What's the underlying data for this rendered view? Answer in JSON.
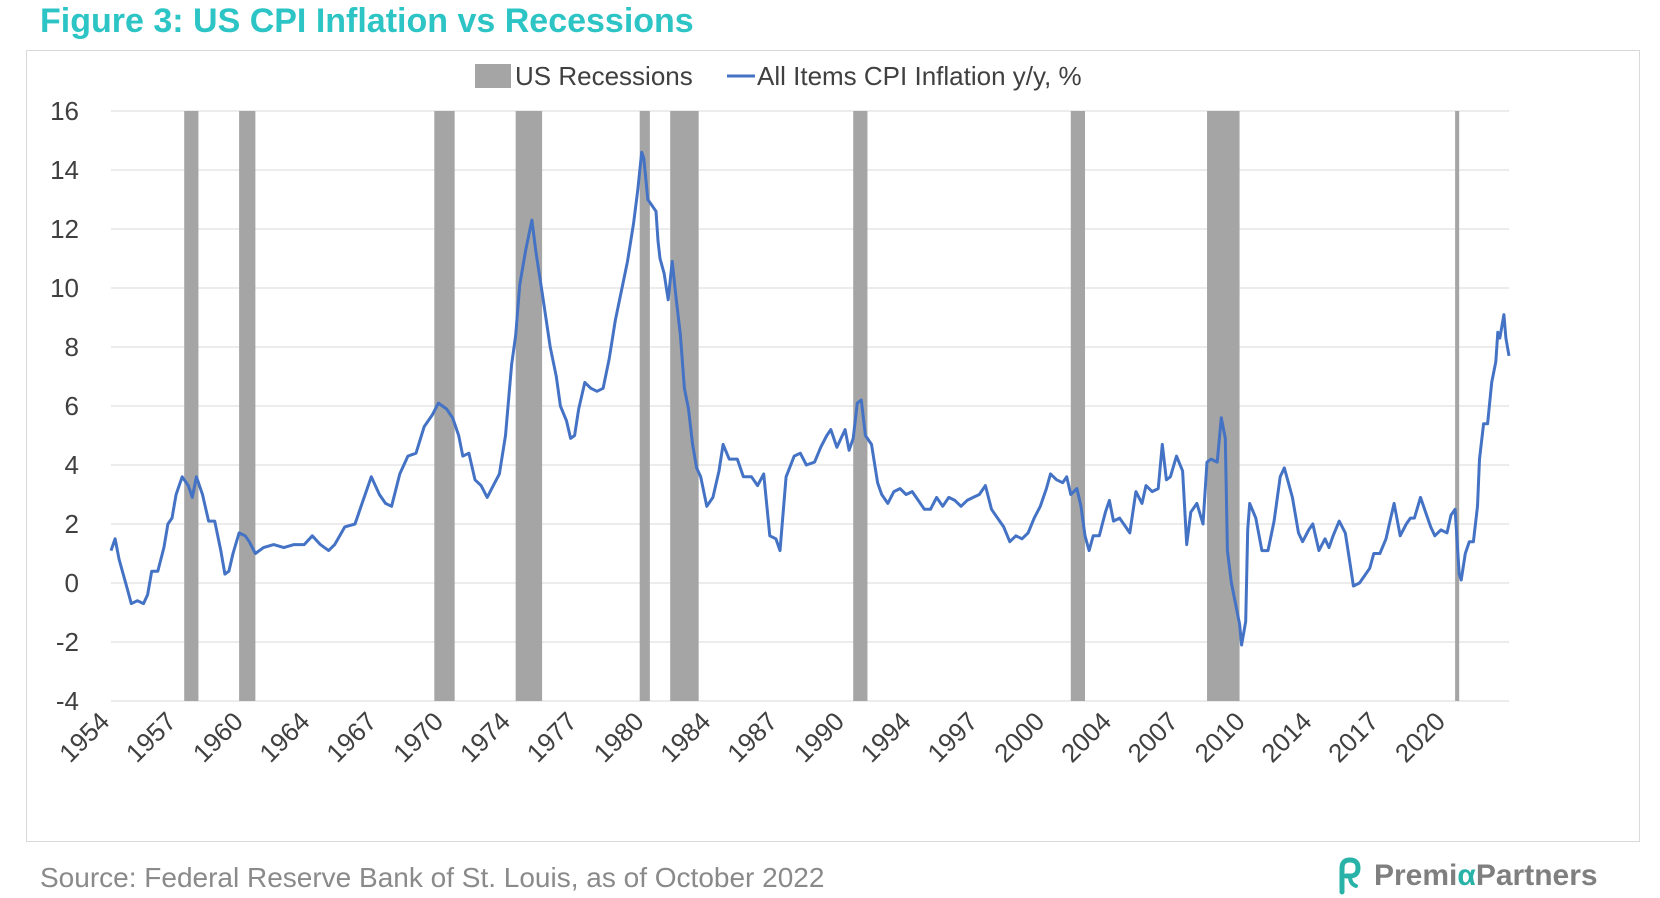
{
  "figure_title": "Figure 3: US CPI Inflation vs Recessions",
  "source": "Source: Federal Reserve Bank of St. Louis, as of October 2022",
  "brand": {
    "name_part1": "Premi",
    "name_alpha": "α",
    "name_part2": "Partners",
    "logo_icon": "premia-logo-icon",
    "logo_color": "#29b3a8"
  },
  "colors": {
    "title": "#2cc4c4",
    "line": "#4472c4",
    "recession": "#a5a5a5",
    "grid": "#d9d9d9",
    "axis_text": "#404040"
  },
  "chart_data": {
    "type": "line",
    "legend": {
      "position": "top",
      "items": [
        "US Recessions",
        "All Items CPI Inflation y/y, %"
      ]
    },
    "x_tick_labels": [
      "1954",
      "1957",
      "1960",
      "1964",
      "1967",
      "1970",
      "1974",
      "1977",
      "1980",
      "1984",
      "1987",
      "1990",
      "1994",
      "1997",
      "2000",
      "2004",
      "2007",
      "2010",
      "2014",
      "2017",
      "2020"
    ],
    "x_tick_years": [
      1954.0,
      1957.28,
      1960.57,
      1963.85,
      1967.14,
      1970.42,
      1973.71,
      1976.99,
      1980.28,
      1983.56,
      1986.85,
      1990.13,
      1993.41,
      1996.7,
      1999.98,
      2003.27,
      2006.55,
      2009.84,
      2013.12,
      2016.41,
      2019.69
    ],
    "ylim": [
      -4,
      16
    ],
    "y_ticks": [
      -4,
      -2,
      0,
      2,
      4,
      6,
      8,
      10,
      12,
      14,
      16
    ],
    "xlim": [
      1954.0,
      2022.75
    ],
    "grid": "horizontal",
    "recessions": [
      {
        "start": 1957.6,
        "end": 1958.3
      },
      {
        "start": 1960.3,
        "end": 1961.1
      },
      {
        "start": 1969.9,
        "end": 1970.9
      },
      {
        "start": 1973.9,
        "end": 1975.2
      },
      {
        "start": 1980.0,
        "end": 1980.5
      },
      {
        "start": 1981.5,
        "end": 1982.9
      },
      {
        "start": 1990.5,
        "end": 1991.2
      },
      {
        "start": 2001.2,
        "end": 2001.9
      },
      {
        "start": 2007.9,
        "end": 2009.5
      },
      {
        "start": 2020.1,
        "end": 2020.3
      }
    ],
    "cpi_series": {
      "name": "All Items CPI Inflation y/y, %",
      "points": [
        [
          1954.0,
          1.1
        ],
        [
          1954.2,
          1.5
        ],
        [
          1954.4,
          0.8
        ],
        [
          1954.6,
          0.3
        ],
        [
          1954.8,
          -0.2
        ],
        [
          1955.0,
          -0.7
        ],
        [
          1955.3,
          -0.6
        ],
        [
          1955.6,
          -0.7
        ],
        [
          1955.8,
          -0.4
        ],
        [
          1956.0,
          0.4
        ],
        [
          1956.3,
          0.4
        ],
        [
          1956.6,
          1.2
        ],
        [
          1956.8,
          2.0
        ],
        [
          1957.0,
          2.2
        ],
        [
          1957.2,
          3.0
        ],
        [
          1957.5,
          3.6
        ],
        [
          1957.8,
          3.3
        ],
        [
          1958.0,
          2.9
        ],
        [
          1958.2,
          3.6
        ],
        [
          1958.5,
          3.0
        ],
        [
          1958.8,
          2.1
        ],
        [
          1959.1,
          2.1
        ],
        [
          1959.4,
          1.1
        ],
        [
          1959.6,
          0.3
        ],
        [
          1959.8,
          0.4
        ],
        [
          1960.0,
          1.0
        ],
        [
          1960.3,
          1.7
        ],
        [
          1960.6,
          1.6
        ],
        [
          1960.8,
          1.4
        ],
        [
          1961.1,
          1.0
        ],
        [
          1961.5,
          1.2
        ],
        [
          1962.0,
          1.3
        ],
        [
          1962.5,
          1.2
        ],
        [
          1963.0,
          1.3
        ],
        [
          1963.5,
          1.3
        ],
        [
          1963.9,
          1.6
        ],
        [
          1964.3,
          1.3
        ],
        [
          1964.7,
          1.1
        ],
        [
          1965.0,
          1.3
        ],
        [
          1965.5,
          1.9
        ],
        [
          1966.0,
          2.0
        ],
        [
          1966.4,
          2.8
        ],
        [
          1966.8,
          3.6
        ],
        [
          1967.2,
          3.0
        ],
        [
          1967.5,
          2.7
        ],
        [
          1967.8,
          2.6
        ],
        [
          1968.2,
          3.7
        ],
        [
          1968.6,
          4.3
        ],
        [
          1969.0,
          4.4
        ],
        [
          1969.4,
          5.3
        ],
        [
          1969.8,
          5.7
        ],
        [
          1970.1,
          6.1
        ],
        [
          1970.5,
          5.9
        ],
        [
          1970.8,
          5.6
        ],
        [
          1971.1,
          5.0
        ],
        [
          1971.3,
          4.3
        ],
        [
          1971.6,
          4.4
        ],
        [
          1971.9,
          3.5
        ],
        [
          1972.2,
          3.3
        ],
        [
          1972.5,
          2.9
        ],
        [
          1972.8,
          3.3
        ],
        [
          1973.1,
          3.7
        ],
        [
          1973.4,
          5.0
        ],
        [
          1973.7,
          7.4
        ],
        [
          1973.9,
          8.4
        ],
        [
          1974.1,
          10.1
        ],
        [
          1974.4,
          11.3
        ],
        [
          1974.7,
          12.3
        ],
        [
          1974.9,
          11.2
        ],
        [
          1975.1,
          10.3
        ],
        [
          1975.3,
          9.4
        ],
        [
          1975.6,
          8.0
        ],
        [
          1975.9,
          7.0
        ],
        [
          1976.1,
          6.0
        ],
        [
          1976.4,
          5.5
        ],
        [
          1976.6,
          4.9
        ],
        [
          1976.8,
          5.0
        ],
        [
          1977.0,
          5.9
        ],
        [
          1977.3,
          6.8
        ],
        [
          1977.6,
          6.6
        ],
        [
          1977.9,
          6.5
        ],
        [
          1978.2,
          6.6
        ],
        [
          1978.5,
          7.6
        ],
        [
          1978.8,
          8.9
        ],
        [
          1979.1,
          9.9
        ],
        [
          1979.4,
          10.9
        ],
        [
          1979.7,
          12.2
        ],
        [
          1979.9,
          13.3
        ],
        [
          1980.1,
          14.6
        ],
        [
          1980.2,
          14.4
        ],
        [
          1980.4,
          13.0
        ],
        [
          1980.6,
          12.8
        ],
        [
          1980.8,
          12.6
        ],
        [
          1980.9,
          11.6
        ],
        [
          1981.0,
          11.0
        ],
        [
          1981.2,
          10.5
        ],
        [
          1981.4,
          9.6
        ],
        [
          1981.6,
          10.9
        ],
        [
          1981.8,
          9.6
        ],
        [
          1982.0,
          8.4
        ],
        [
          1982.2,
          6.6
        ],
        [
          1982.4,
          5.9
        ],
        [
          1982.6,
          4.7
        ],
        [
          1982.8,
          3.9
        ],
        [
          1983.0,
          3.6
        ],
        [
          1983.3,
          2.6
        ],
        [
          1983.6,
          2.9
        ],
        [
          1983.9,
          3.8
        ],
        [
          1984.1,
          4.7
        ],
        [
          1984.4,
          4.2
        ],
        [
          1984.8,
          4.2
        ],
        [
          1985.1,
          3.6
        ],
        [
          1985.5,
          3.6
        ],
        [
          1985.8,
          3.3
        ],
        [
          1986.1,
          3.7
        ],
        [
          1986.4,
          1.6
        ],
        [
          1986.7,
          1.5
        ],
        [
          1986.9,
          1.1
        ],
        [
          1987.2,
          3.6
        ],
        [
          1987.6,
          4.3
        ],
        [
          1987.9,
          4.4
        ],
        [
          1988.2,
          4.0
        ],
        [
          1988.6,
          4.1
        ],
        [
          1988.9,
          4.6
        ],
        [
          1989.2,
          5.0
        ],
        [
          1989.4,
          5.2
        ],
        [
          1989.7,
          4.6
        ],
        [
          1989.9,
          4.9
        ],
        [
          1990.1,
          5.2
        ],
        [
          1990.3,
          4.5
        ],
        [
          1990.5,
          4.9
        ],
        [
          1990.7,
          6.1
        ],
        [
          1990.9,
          6.2
        ],
        [
          1991.1,
          5.0
        ],
        [
          1991.4,
          4.7
        ],
        [
          1991.7,
          3.4
        ],
        [
          1991.9,
          3.0
        ],
        [
          1992.2,
          2.7
        ],
        [
          1992.5,
          3.1
        ],
        [
          1992.8,
          3.2
        ],
        [
          1993.1,
          3.0
        ],
        [
          1993.4,
          3.1
        ],
        [
          1993.7,
          2.8
        ],
        [
          1994.0,
          2.5
        ],
        [
          1994.3,
          2.5
        ],
        [
          1994.6,
          2.9
        ],
        [
          1994.9,
          2.6
        ],
        [
          1995.2,
          2.9
        ],
        [
          1995.5,
          2.8
        ],
        [
          1995.8,
          2.6
        ],
        [
          1996.1,
          2.8
        ],
        [
          1996.4,
          2.9
        ],
        [
          1996.7,
          3.0
        ],
        [
          1997.0,
          3.3
        ],
        [
          1997.3,
          2.5
        ],
        [
          1997.6,
          2.2
        ],
        [
          1997.9,
          1.9
        ],
        [
          1998.2,
          1.4
        ],
        [
          1998.5,
          1.6
        ],
        [
          1998.8,
          1.5
        ],
        [
          1999.1,
          1.7
        ],
        [
          1999.4,
          2.2
        ],
        [
          1999.7,
          2.6
        ],
        [
          2000.0,
          3.2
        ],
        [
          2000.2,
          3.7
        ],
        [
          2000.5,
          3.5
        ],
        [
          2000.8,
          3.4
        ],
        [
          2001.0,
          3.6
        ],
        [
          2001.2,
          3.0
        ],
        [
          2001.5,
          3.2
        ],
        [
          2001.7,
          2.6
        ],
        [
          2001.9,
          1.6
        ],
        [
          2002.1,
          1.1
        ],
        [
          2002.3,
          1.6
        ],
        [
          2002.6,
          1.6
        ],
        [
          2002.9,
          2.4
        ],
        [
          2003.1,
          2.8
        ],
        [
          2003.3,
          2.1
        ],
        [
          2003.6,
          2.2
        ],
        [
          2003.9,
          1.9
        ],
        [
          2004.1,
          1.7
        ],
        [
          2004.4,
          3.1
        ],
        [
          2004.7,
          2.7
        ],
        [
          2004.9,
          3.3
        ],
        [
          2005.2,
          3.1
        ],
        [
          2005.5,
          3.2
        ],
        [
          2005.7,
          4.7
        ],
        [
          2005.9,
          3.5
        ],
        [
          2006.1,
          3.6
        ],
        [
          2006.4,
          4.3
        ],
        [
          2006.7,
          3.8
        ],
        [
          2006.9,
          1.3
        ],
        [
          2007.1,
          2.4
        ],
        [
          2007.4,
          2.7
        ],
        [
          2007.7,
          2.0
        ],
        [
          2007.9,
          4.1
        ],
        [
          2008.1,
          4.2
        ],
        [
          2008.4,
          4.1
        ],
        [
          2008.6,
          5.6
        ],
        [
          2008.8,
          4.9
        ],
        [
          2008.9,
          1.1
        ],
        [
          2009.1,
          0.0
        ],
        [
          2009.3,
          -0.7
        ],
        [
          2009.5,
          -1.4
        ],
        [
          2009.6,
          -2.1
        ],
        [
          2009.8,
          -1.3
        ],
        [
          2009.9,
          1.8
        ],
        [
          2010.0,
          2.7
        ],
        [
          2010.3,
          2.2
        ],
        [
          2010.6,
          1.1
        ],
        [
          2010.9,
          1.1
        ],
        [
          2011.2,
          2.1
        ],
        [
          2011.5,
          3.6
        ],
        [
          2011.7,
          3.9
        ],
        [
          2011.9,
          3.4
        ],
        [
          2012.1,
          2.9
        ],
        [
          2012.4,
          1.7
        ],
        [
          2012.6,
          1.4
        ],
        [
          2012.9,
          1.8
        ],
        [
          2013.1,
          2.0
        ],
        [
          2013.4,
          1.1
        ],
        [
          2013.7,
          1.5
        ],
        [
          2013.9,
          1.2
        ],
        [
          2014.1,
          1.6
        ],
        [
          2014.4,
          2.1
        ],
        [
          2014.7,
          1.7
        ],
        [
          2014.9,
          0.8
        ],
        [
          2015.1,
          -0.1
        ],
        [
          2015.4,
          0.0
        ],
        [
          2015.6,
          0.2
        ],
        [
          2015.9,
          0.5
        ],
        [
          2016.1,
          1.0
        ],
        [
          2016.4,
          1.0
        ],
        [
          2016.7,
          1.5
        ],
        [
          2016.9,
          2.1
        ],
        [
          2017.1,
          2.7
        ],
        [
          2017.4,
          1.6
        ],
        [
          2017.7,
          2.0
        ],
        [
          2017.9,
          2.2
        ],
        [
          2018.1,
          2.2
        ],
        [
          2018.4,
          2.9
        ],
        [
          2018.7,
          2.3
        ],
        [
          2018.9,
          1.9
        ],
        [
          2019.1,
          1.6
        ],
        [
          2019.4,
          1.8
        ],
        [
          2019.7,
          1.7
        ],
        [
          2019.9,
          2.3
        ],
        [
          2020.1,
          2.5
        ],
        [
          2020.3,
          0.3
        ],
        [
          2020.4,
          0.1
        ],
        [
          2020.6,
          1.0
        ],
        [
          2020.8,
          1.4
        ],
        [
          2021.0,
          1.4
        ],
        [
          2021.2,
          2.6
        ],
        [
          2021.3,
          4.2
        ],
        [
          2021.5,
          5.4
        ],
        [
          2021.7,
          5.4
        ],
        [
          2021.9,
          6.8
        ],
        [
          2022.1,
          7.5
        ],
        [
          2022.2,
          8.5
        ],
        [
          2022.3,
          8.3
        ],
        [
          2022.5,
          9.1
        ],
        [
          2022.6,
          8.3
        ],
        [
          2022.75,
          7.7
        ]
      ]
    }
  }
}
